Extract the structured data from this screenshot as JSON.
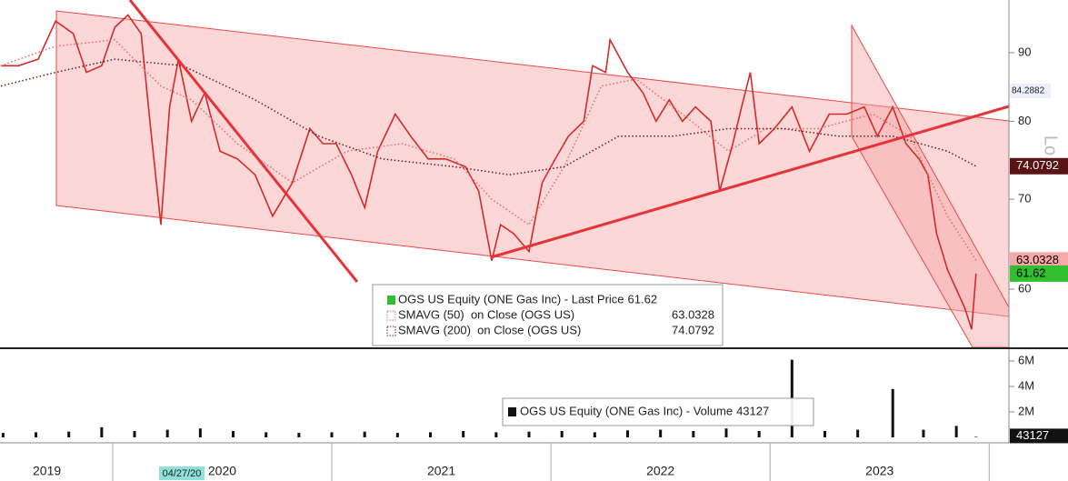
{
  "chart_data": [
    {
      "type": "line",
      "log_y": true,
      "xlim": [
        2019.486,
        2024.09
      ],
      "ylim": [
        54.3,
        98.5
      ],
      "yticks": [
        60,
        70,
        80,
        90
      ],
      "series": [
        {
          "name": "OGS US Equity (ONE Gas Inc) - Last Price",
          "color": "#d42a2a",
          "style": "solid",
          "tag_color": "#2fbf2f",
          "x": [
            2019.49,
            2019.57,
            2019.66,
            2019.74,
            2019.82,
            2019.88,
            2019.95,
            2020.01,
            2020.07,
            2020.13,
            2020.17,
            2020.22,
            2020.26,
            2020.3,
            2020.36,
            2020.42,
            2020.49,
            2020.57,
            2020.65,
            2020.73,
            2020.82,
            2020.9,
            2020.96,
            2021.02,
            2021.09,
            2021.15,
            2021.21,
            2021.29,
            2021.36,
            2021.44,
            2021.52,
            2021.61,
            2021.67,
            2021.73,
            2021.77,
            2021.83,
            2021.9,
            2021.96,
            2022.02,
            2022.08,
            2022.15,
            2022.19,
            2022.25,
            2022.27,
            2022.35,
            2022.42,
            2022.48,
            2022.54,
            2022.6,
            2022.66,
            2022.73,
            2022.77,
            2022.83,
            2022.87,
            2022.91,
            2022.95,
            2023.02,
            2023.1,
            2023.18,
            2023.27,
            2023.35,
            2023.43,
            2023.49,
            2023.56,
            2023.62,
            2023.68,
            2023.72,
            2023.76,
            2023.81,
            2023.85,
            2023.89,
            2023.92,
            2023.94
          ],
          "values": [
            88,
            88,
            89,
            95,
            93,
            87,
            88,
            94,
            96,
            93,
            80,
            67,
            82,
            89,
            80,
            84,
            76,
            75,
            73,
            68,
            72,
            79,
            77,
            77,
            73,
            69,
            76,
            81,
            78,
            75,
            75,
            74,
            71,
            63,
            67,
            66,
            64,
            72,
            75,
            78,
            80,
            88,
            87,
            92,
            87,
            84,
            80,
            83,
            80,
            82,
            80,
            71,
            77,
            82,
            87,
            77,
            79,
            82,
            76,
            81,
            81,
            82,
            78,
            82,
            77,
            75,
            73,
            66,
            62,
            60,
            58,
            56,
            61.62
          ]
        },
        {
          "name": "SMAVG (50)  on Close (OGS US)",
          "color": "#e86a6a",
          "style": "dotted",
          "tag_color": "#f7a8a8",
          "x": [
            2019.49,
            2019.74,
            2020.01,
            2020.22,
            2020.36,
            2020.57,
            2020.82,
            2021.07,
            2021.32,
            2021.56,
            2021.73,
            2021.9,
            2022.06,
            2022.23,
            2022.39,
            2022.6,
            2022.81,
            2022.98,
            2023.22,
            2023.47,
            2023.64,
            2023.81,
            2023.94
          ],
          "values": [
            88,
            91,
            92,
            85,
            83,
            77,
            72,
            76,
            77,
            75,
            70,
            67,
            74,
            85,
            86,
            81,
            76,
            79,
            79,
            81,
            78,
            68,
            63.0328
          ]
        },
        {
          "name": "SMAVG (200)  on Close (OGS US)",
          "color": "#6b1a1a",
          "style": "dotted",
          "tag_color": "#5a1414",
          "x": [
            2019.49,
            2019.74,
            2020.01,
            2020.32,
            2020.65,
            2020.94,
            2021.23,
            2021.56,
            2021.81,
            2022.06,
            2022.31,
            2022.56,
            2022.81,
            2023.06,
            2023.31,
            2023.56,
            2023.81,
            2023.94
          ],
          "values": [
            85,
            87,
            89,
            88,
            83,
            78,
            75,
            74,
            73,
            74,
            78,
            78,
            79,
            79,
            78,
            78,
            76,
            74.0792
          ]
        }
      ],
      "trendline_value": 84.2882,
      "side_label": "Lo"
    },
    {
      "type": "bar",
      "color": "#111111",
      "xlim": [
        2019.486,
        2024.09
      ],
      "ylim": [
        0,
        6860000
      ],
      "yticks": [
        {
          "value": 2000000,
          "label": "2M"
        },
        {
          "value": 4000000,
          "label": "4M"
        },
        {
          "value": 6000000,
          "label": "6M"
        }
      ],
      "series": [
        {
          "name": "OGS US Equity (ONE Gas Inc) - Volume",
          "x": [
            2019.5,
            2019.65,
            2019.8,
            2019.95,
            2020.1,
            2020.25,
            2020.4,
            2020.55,
            2020.7,
            2020.85,
            2021.0,
            2021.15,
            2021.3,
            2021.45,
            2021.6,
            2021.75,
            2021.9,
            2022.05,
            2022.2,
            2022.35,
            2022.5,
            2022.65,
            2022.8,
            2022.95,
            2023.1,
            2023.25,
            2023.4,
            2023.56,
            2023.7,
            2023.85,
            2023.94
          ],
          "values": [
            350000,
            400000,
            450000,
            800000,
            500000,
            600000,
            700000,
            500000,
            400000,
            350000,
            400000,
            450000,
            350000,
            400000,
            500000,
            400000,
            450000,
            500000,
            400000,
            550000,
            600000,
            500000,
            700000,
            500000,
            6100000,
            500000,
            600000,
            3800000,
            600000,
            900000,
            43127
          ]
        }
      ],
      "xticks": [
        {
          "value": 2019.7,
          "label": "2019"
        },
        {
          "value": 2020.5,
          "label": "2020"
        },
        {
          "value": 2021.5,
          "label": "2021"
        },
        {
          "value": 2022.5,
          "label": "2022"
        },
        {
          "value": 2023.5,
          "label": "2023"
        }
      ],
      "year_bounds": [
        2020,
        2021,
        2022,
        2023,
        2024
      ],
      "cursor_date": "04/27/20"
    }
  ]
}
